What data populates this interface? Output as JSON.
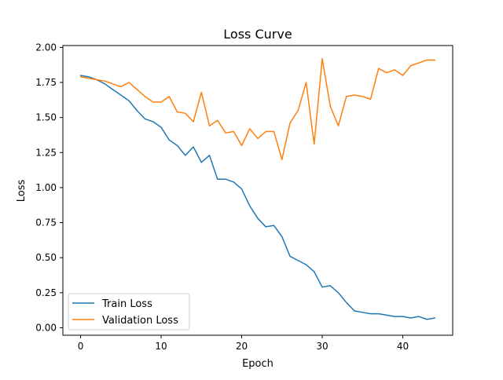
{
  "chart_data": {
    "type": "line",
    "title": "Loss Curve",
    "xlabel": "Epoch",
    "ylabel": "Loss",
    "xlim": [
      -2.2,
      46.2
    ],
    "ylim": [
      -0.0535,
      2.0135
    ],
    "x_ticks": [
      0,
      10,
      20,
      30,
      40
    ],
    "y_ticks": [
      0.0,
      0.25,
      0.5,
      0.75,
      1.0,
      1.25,
      1.5,
      1.75,
      2.0
    ],
    "x_tick_labels": [
      "0",
      "10",
      "20",
      "30",
      "40"
    ],
    "y_tick_labels": [
      "0.00",
      "0.25",
      "0.50",
      "0.75",
      "1.00",
      "1.25",
      "1.50",
      "1.75",
      "2.00"
    ],
    "grid": false,
    "legend_position": "lower-left",
    "x": [
      0,
      1,
      2,
      3,
      4,
      5,
      6,
      7,
      8,
      9,
      10,
      11,
      12,
      13,
      14,
      15,
      16,
      17,
      18,
      19,
      20,
      21,
      22,
      23,
      24,
      25,
      26,
      27,
      28,
      29,
      30,
      31,
      32,
      33,
      34,
      35,
      36,
      37,
      38,
      39,
      40,
      41,
      42,
      43,
      44
    ],
    "series": [
      {
        "name": "Train Loss",
        "color": "#1f77b4",
        "values": [
          1.8,
          1.79,
          1.77,
          1.74,
          1.7,
          1.66,
          1.62,
          1.55,
          1.49,
          1.47,
          1.43,
          1.34,
          1.3,
          1.23,
          1.29,
          1.18,
          1.23,
          1.06,
          1.06,
          1.04,
          0.99,
          0.87,
          0.78,
          0.72,
          0.73,
          0.65,
          0.51,
          0.48,
          0.45,
          0.4,
          0.29,
          0.3,
          0.25,
          0.18,
          0.12,
          0.11,
          0.1,
          0.1,
          0.09,
          0.08,
          0.08,
          0.07,
          0.08,
          0.06,
          0.07
        ]
      },
      {
        "name": "Validation Loss",
        "color": "#ff7f0e",
        "values": [
          1.79,
          1.78,
          1.77,
          1.76,
          1.74,
          1.72,
          1.75,
          1.7,
          1.65,
          1.61,
          1.61,
          1.65,
          1.54,
          1.53,
          1.47,
          1.68,
          1.44,
          1.48,
          1.39,
          1.4,
          1.3,
          1.42,
          1.35,
          1.4,
          1.4,
          1.2,
          1.46,
          1.55,
          1.75,
          1.31,
          1.92,
          1.58,
          1.44,
          1.65,
          1.66,
          1.65,
          1.63,
          1.85,
          1.82,
          1.84,
          1.8,
          1.87,
          1.89,
          1.91,
          1.91
        ]
      }
    ]
  }
}
